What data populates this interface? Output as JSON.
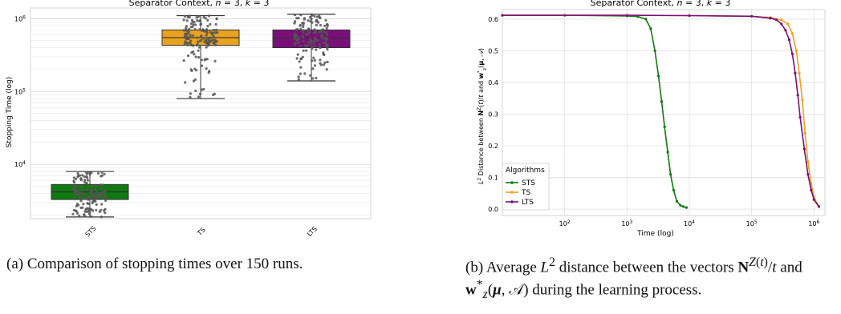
{
  "chart_data": [
    {
      "type": "box",
      "title": "Separator Context, n = 3, k = 3",
      "ylabel": "Stopping Time (log)",
      "xlabel": "",
      "yscale": "log",
      "ylim": [
        1800,
        1400000
      ],
      "grid": true,
      "categories": [
        "STS",
        "TS",
        "LTS"
      ],
      "colors": [
        "#0f7a0f",
        "#e8a21e",
        "#7a0f7a"
      ],
      "boxes": [
        {
          "name": "STS",
          "whislo": 1900,
          "q1": 3300,
          "med": 4200,
          "q3": 5300,
          "whishi": 8000
        },
        {
          "name": "TS",
          "whislo": 80000,
          "q1": 430000,
          "med": 550000,
          "q3": 700000,
          "whishi": 1100000
        },
        {
          "name": "LTS",
          "whislo": 140000,
          "q1": 400000,
          "med": 540000,
          "q3": 700000,
          "whishi": 1150000
        }
      ],
      "runs": 150
    },
    {
      "type": "line",
      "title": "Separator Context, n = 3, k = 3",
      "xlabel": "Time (log)",
      "ylabel": "L² Distance between N^Z(t)/t and w*_z(μ, A)",
      "xscale": "log",
      "xlim": [
        10,
        1500000
      ],
      "ylim": [
        -0.02,
        0.63
      ],
      "grid": true,
      "legend_title": "Algorithms",
      "legend_position": "lower-left",
      "series": [
        {
          "name": "STS",
          "color": "#0f7a0f",
          "x": [
            10,
            100,
            1000,
            1500,
            2000,
            2400,
            2800,
            3200,
            3600,
            4000,
            4500,
            5000,
            5600,
            6300,
            7200,
            8000,
            9000
          ],
          "y": [
            0.612,
            0.612,
            0.61,
            0.608,
            0.6,
            0.57,
            0.5,
            0.42,
            0.34,
            0.26,
            0.18,
            0.11,
            0.06,
            0.025,
            0.012,
            0.008,
            0.005
          ]
        },
        {
          "name": "TS",
          "color": "#f0a020",
          "x": [
            10,
            1000,
            10000,
            100000,
            200000,
            300000,
            380000,
            450000,
            520000,
            580000,
            650000,
            720000,
            800000,
            900000,
            1000000,
            1100000,
            1200000
          ],
          "y": [
            0.612,
            0.612,
            0.611,
            0.609,
            0.605,
            0.598,
            0.585,
            0.555,
            0.5,
            0.43,
            0.345,
            0.24,
            0.15,
            0.08,
            0.04,
            0.02,
            0.008
          ]
        },
        {
          "name": "LTS",
          "color": "#7a0f7a",
          "x": [
            10,
            1000,
            10000,
            100000,
            200000,
            250000,
            300000,
            350000,
            400000,
            450000,
            500000,
            550000,
            600000,
            700000,
            800000,
            900000,
            1000000,
            1200000
          ],
          "y": [
            0.612,
            0.612,
            0.611,
            0.609,
            0.603,
            0.598,
            0.585,
            0.565,
            0.535,
            0.49,
            0.43,
            0.36,
            0.29,
            0.19,
            0.11,
            0.06,
            0.03,
            0.008
          ]
        }
      ]
    }
  ],
  "captions": {
    "a": "(a) Comparison of stopping times over 150 runs.",
    "b": "(b) Average L² distance between the vectors N^Z(t)/t and w*_z(μ, A) during the learning process."
  }
}
